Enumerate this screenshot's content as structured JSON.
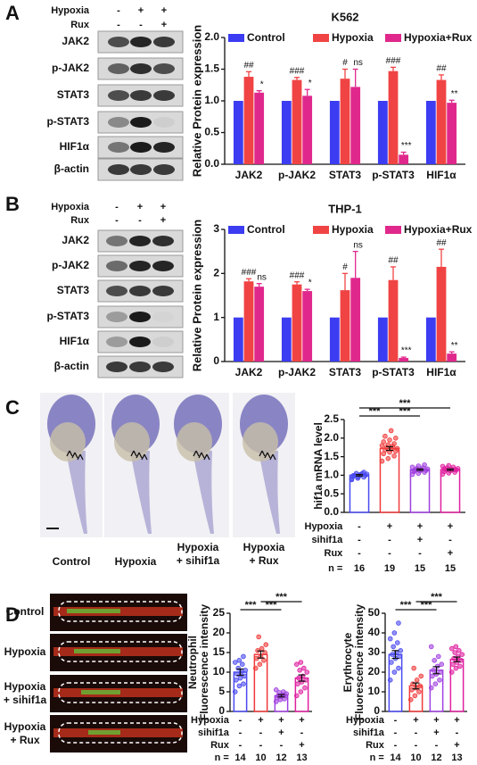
{
  "panel_labels": [
    "A",
    "B",
    "C",
    "D"
  ],
  "blots": [
    {
      "header": [
        {
          "label": "Hypoxia",
          "signs": [
            "-",
            "+",
            "+"
          ]
        },
        {
          "label": "Rux",
          "signs": [
            "-",
            "-",
            "+"
          ]
        }
      ],
      "rows": [
        "JAK2",
        "p-JAK2",
        "STAT3",
        "p-STAT3",
        "HIF1α",
        "β-actin"
      ]
    },
    {
      "header": [
        {
          "label": "Hypoxia",
          "signs": [
            "-",
            "+",
            "+"
          ]
        },
        {
          "label": "Rux",
          "signs": [
            "-",
            "-",
            "+"
          ]
        }
      ],
      "rows": [
        "JAK2",
        "p-JAK2",
        "STAT3",
        "p-STAT3",
        "HIF1α",
        "β-actin"
      ]
    }
  ],
  "images": [
    {
      "labels": [
        [
          "Control"
        ],
        [
          "Hypoxia"
        ],
        [
          "Hypoxia",
          "+ sihif1a"
        ],
        [
          "Hypoxia",
          "+ Rux"
        ]
      ]
    },
    {
      "labels": [
        [
          "Control"
        ],
        [
          "Hypoxia"
        ],
        [
          "Hypoxia",
          "+ sihif1a"
        ],
        [
          "Hypoxia",
          "+ Rux"
        ]
      ]
    }
  ],
  "chart_data": [
    {
      "type": "bar",
      "title": "K562",
      "ylabel": "Relative Protein expression",
      "categories": [
        "JAK2",
        "p-JAK2",
        "STAT3",
        "p-STAT3",
        "HIF1α"
      ],
      "series": [
        {
          "name": "Control",
          "color": "#3c3cf2",
          "values": [
            1.0,
            1.0,
            1.0,
            1.0,
            1.0
          ]
        },
        {
          "name": "Hypoxia",
          "color": "#f04444",
          "values": [
            1.38,
            1.33,
            1.35,
            1.47,
            1.33
          ],
          "errors": [
            0.08,
            0.04,
            0.15,
            0.06,
            0.08
          ],
          "annotations": [
            "##",
            "###",
            "#",
            "###",
            "##"
          ]
        },
        {
          "name": "Hypoxia+Rux",
          "color": "#e0288c",
          "values": [
            1.13,
            1.08,
            1.22,
            0.15,
            0.97
          ],
          "errors": [
            0.03,
            0.1,
            0.28,
            0.04,
            0.04
          ],
          "annotations": [
            "*",
            "*",
            "ns",
            "***",
            "**"
          ]
        }
      ],
      "ylim": [
        0,
        2
      ],
      "yticks": [
        {
          "value": 0,
          "label": "0.0"
        },
        0.5,
        {
          "value": 1,
          "label": "1.0"
        },
        1.5,
        {
          "value": 2,
          "label": "2.0"
        }
      ],
      "legend": "top"
    },
    {
      "type": "bar",
      "title": "THP-1",
      "ylabel": "Relative Protein expression",
      "categories": [
        "JAK2",
        "p-JAK2",
        "STAT3",
        "p-STAT3",
        "HIF1α"
      ],
      "series": [
        {
          "name": "Control",
          "color": "#3c3cf2",
          "values": [
            1.0,
            1.0,
            1.0,
            1.0,
            1.0
          ]
        },
        {
          "name": "Hypoxia",
          "color": "#f04444",
          "values": [
            1.82,
            1.75,
            1.62,
            1.85,
            2.15
          ],
          "errors": [
            0.06,
            0.06,
            0.38,
            0.3,
            0.4
          ],
          "annotations": [
            "###",
            "###",
            "#",
            "##",
            "##"
          ]
        },
        {
          "name": "Hypoxia+Rux",
          "color": "#e0288c",
          "values": [
            1.7,
            1.6,
            1.9,
            0.08,
            0.18
          ],
          "errors": [
            0.07,
            0.04,
            0.6,
            0.02,
            0.04
          ],
          "annotations": [
            "ns",
            "*",
            "ns",
            "***",
            "**"
          ]
        }
      ],
      "ylim": [
        0,
        3
      ],
      "yticks": [
        0,
        1,
        2,
        3
      ],
      "legend": "top"
    },
    {
      "type": "dot_bar",
      "ylabel": [
        "hif1a mRNA level"
      ],
      "ylim": [
        0,
        2.5
      ],
      "yticks": [
        {
          "value": 0,
          "label": "0.0"
        },
        0.5,
        {
          "value": 1,
          "label": "1.0"
        },
        1.5,
        {
          "value": 2,
          "label": "2.0"
        },
        2.5
      ],
      "groups": [
        {
          "color": "#4a4af0",
          "mean": 1.0,
          "error": 0.02,
          "points": [
            0.88,
            0.92,
            0.95,
            0.97,
            0.98,
            1.0,
            1.0,
            1.02,
            1.03,
            1.05,
            1.05,
            0.9,
            0.95,
            1.08,
            0.99,
            1.01
          ]
        },
        {
          "color": "#f03a3a",
          "mean": 1.72,
          "error": 0.05,
          "points": [
            1.38,
            1.45,
            1.52,
            1.58,
            1.62,
            1.65,
            1.68,
            1.7,
            1.72,
            1.75,
            1.78,
            1.8,
            1.82,
            1.85,
            1.9,
            1.95,
            2.0,
            2.05,
            2.2
          ]
        },
        {
          "color": "#a040e0",
          "mean": 1.15,
          "error": 0.02,
          "points": [
            1.02,
            1.05,
            1.08,
            1.1,
            1.12,
            1.13,
            1.15,
            1.15,
            1.17,
            1.18,
            1.2,
            1.22,
            1.25,
            1.28,
            1.12
          ]
        },
        {
          "color": "#e020a0",
          "mean": 1.15,
          "error": 0.02,
          "points": [
            1.03,
            1.06,
            1.08,
            1.1,
            1.12,
            1.14,
            1.15,
            1.16,
            1.18,
            1.2,
            1.22,
            1.24,
            1.26,
            1.15,
            1.17
          ]
        }
      ],
      "significance": [
        "***",
        "***",
        "***"
      ],
      "table": {
        "rows": [
          {
            "label": "Hypoxia",
            "cells": [
              "-",
              "+",
              "+",
              "+"
            ]
          },
          {
            "label": "sihif1a",
            "cells": [
              "-",
              "-",
              "+",
              "-"
            ]
          },
          {
            "label": "Rux",
            "cells": [
              "-",
              "-",
              "-",
              "+"
            ]
          }
        ],
        "n_label": "n =",
        "n": [
          16,
          19,
          15,
          15
        ]
      }
    },
    {
      "type": "dot_bar",
      "ylabel": [
        "Neutrophil",
        "Fluorescence intensity"
      ],
      "ylim": [
        0,
        25
      ],
      "yticks": [
        0,
        5,
        10,
        15,
        20,
        25
      ],
      "groups": [
        {
          "color": "#4a4af0",
          "mean": 10,
          "error": 0.8,
          "points": [
            5,
            6.5,
            7,
            8,
            8.5,
            9,
            9.5,
            10,
            10.5,
            11,
            12,
            12.5,
            13,
            14
          ]
        },
        {
          "color": "#f03a3a",
          "mean": 14.5,
          "error": 0.9,
          "points": [
            11,
            12,
            13,
            13.5,
            14,
            15,
            15.5,
            16,
            17,
            19
          ]
        },
        {
          "color": "#a040e0",
          "mean": 4,
          "error": 0.3,
          "points": [
            2.5,
            3,
            3.2,
            3.5,
            3.8,
            4,
            4,
            4.2,
            4.5,
            4.8,
            5,
            5.5
          ]
        },
        {
          "color": "#e020a0",
          "mean": 8.5,
          "error": 0.8,
          "points": [
            4,
            5,
            6,
            7,
            7.5,
            8,
            8.5,
            9,
            10,
            10.5,
            11,
            12,
            12.5
          ]
        }
      ],
      "significance": [
        "***",
        "***",
        "***"
      ],
      "table": {
        "rows": [
          {
            "label": "Hypoxia",
            "cells": [
              "-",
              "+",
              "+",
              "+"
            ]
          },
          {
            "label": "sihif1a",
            "cells": [
              "-",
              "-",
              "+",
              "-"
            ]
          },
          {
            "label": "Rux",
            "cells": [
              "-",
              "-",
              "-",
              "+"
            ]
          }
        ],
        "n_label": "n =",
        "n": [
          14,
          10,
          12,
          13
        ]
      }
    },
    {
      "type": "dot_bar",
      "ylabel": [
        "Erythrocyte",
        "Fluorescence intensity"
      ],
      "ylim": [
        0,
        50
      ],
      "yticks": [
        0,
        10,
        20,
        30,
        40,
        50
      ],
      "groups": [
        {
          "color": "#4a4af0",
          "mean": 29,
          "error": 2,
          "points": [
            16,
            20,
            22,
            25,
            27,
            28,
            29,
            30,
            31,
            33,
            35,
            37,
            40,
            45
          ]
        },
        {
          "color": "#f03a3a",
          "mean": 13,
          "error": 1.5,
          "points": [
            6,
            8,
            10,
            11,
            12,
            13,
            14,
            16,
            18,
            22
          ]
        },
        {
          "color": "#a040e0",
          "mean": 21,
          "error": 1.8,
          "points": [
            12,
            14,
            16,
            18,
            19,
            20,
            21,
            23,
            24,
            26,
            28,
            33
          ]
        },
        {
          "color": "#e020a0",
          "mean": 26.5,
          "error": 1.2,
          "points": [
            20,
            22,
            23,
            24,
            25,
            26,
            27,
            28,
            29,
            30,
            31,
            32,
            33
          ]
        }
      ],
      "significance": [
        "***",
        "***",
        "***"
      ],
      "table": {
        "rows": [
          {
            "label": "Hypoxia",
            "cells": [
              "-",
              "+",
              "+",
              "+"
            ]
          },
          {
            "label": "sihif1a",
            "cells": [
              "-",
              "-",
              "+",
              "-"
            ]
          },
          {
            "label": "Rux",
            "cells": [
              "-",
              "-",
              "-",
              "+"
            ]
          }
        ],
        "n_label": "n =",
        "n": [
          14,
          10,
          12,
          13
        ]
      }
    }
  ]
}
